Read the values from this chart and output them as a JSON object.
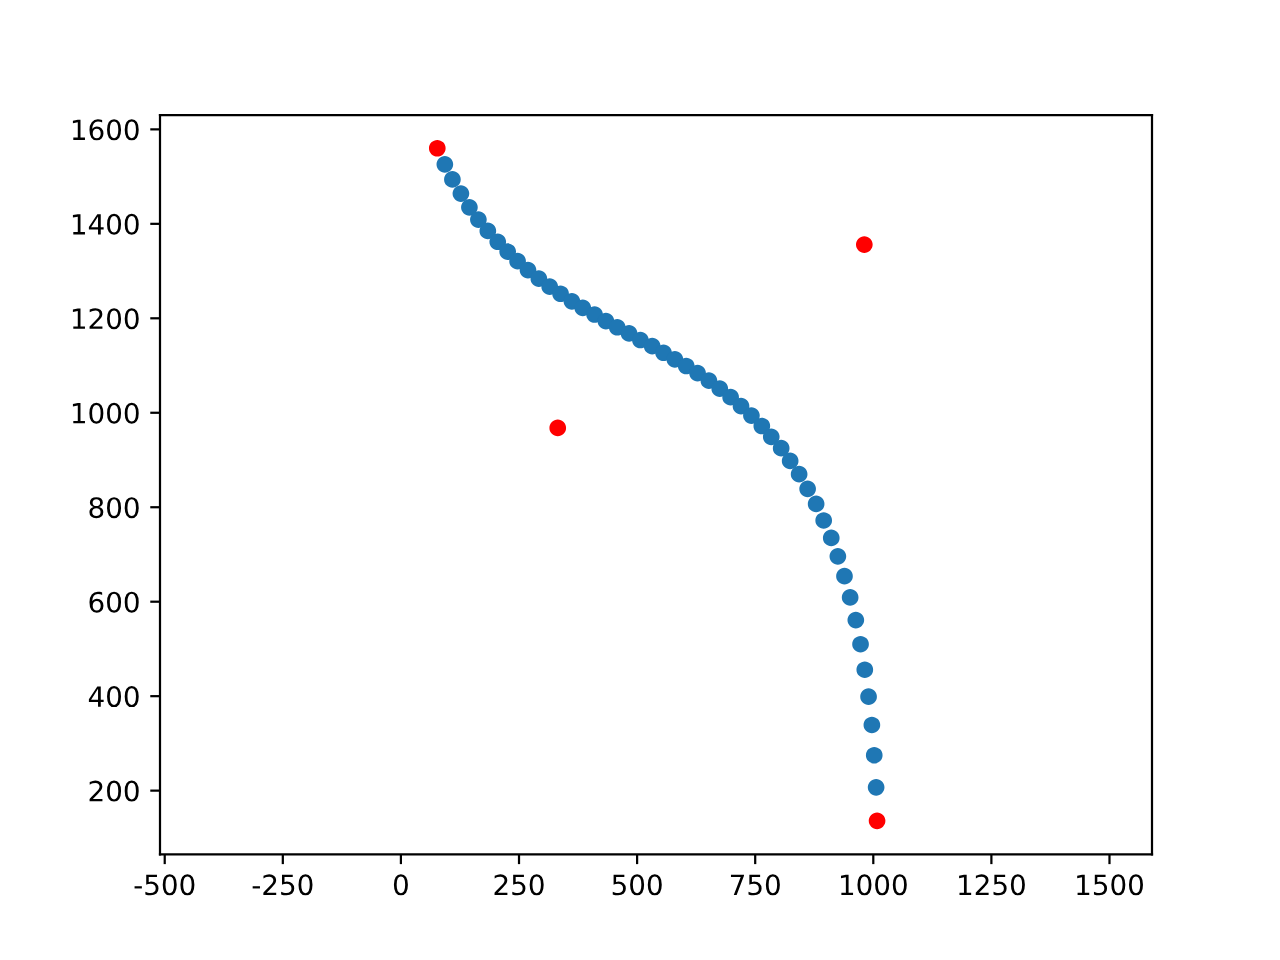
{
  "chart_data": {
    "type": "scatter",
    "marker": "circle",
    "grid": false,
    "legend": false,
    "xlim": [
      -510,
      1590
    ],
    "ylim": [
      65,
      1630
    ],
    "xticks": [
      -500,
      -250,
      0,
      250,
      500,
      750,
      1000,
      1250,
      1500
    ],
    "yticks": [
      200,
      400,
      600,
      800,
      1000,
      1200,
      1400,
      1600
    ],
    "series": [
      {
        "color": "#1f77b4",
        "x": [
          93,
          109,
          127,
          145,
          164,
          184,
          205,
          226,
          247,
          269,
          292,
          315,
          338,
          362,
          385,
          410,
          434,
          458,
          483,
          507,
          532,
          556,
          580,
          604,
          628,
          652,
          675,
          698,
          720,
          742,
          764,
          784,
          805,
          824,
          843,
          861,
          879,
          895,
          911,
          925,
          939,
          951,
          963,
          973,
          982,
          990,
          997,
          1002,
          1006
        ],
        "values": [
          1526,
          1494,
          1464,
          1435,
          1409,
          1385,
          1362,
          1341,
          1321,
          1302,
          1284,
          1267,
          1252,
          1236,
          1222,
          1208,
          1194,
          1181,
          1168,
          1154,
          1141,
          1127,
          1113,
          1099,
          1084,
          1068,
          1051,
          1033,
          1014,
          994,
          972,
          949,
          925,
          898,
          870,
          839,
          807,
          772,
          735,
          696,
          654,
          609,
          561,
          510,
          456,
          399,
          339,
          275,
          207
        ]
      },
      {
        "color": "#ff0000",
        "x": [
          77,
          332,
          981,
          1008
        ],
        "values": [
          1560,
          968,
          1356,
          136
        ]
      }
    ]
  }
}
